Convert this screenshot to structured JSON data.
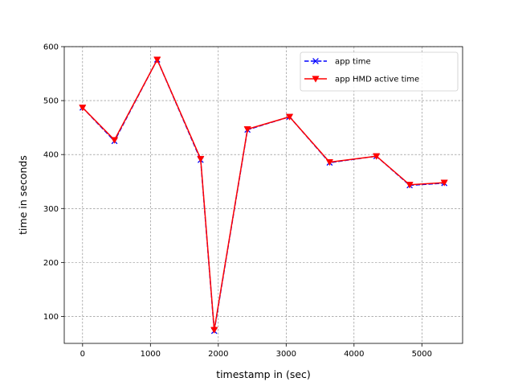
{
  "chart_data": {
    "type": "line",
    "title": "",
    "xlabel": "timestamp in (sec)",
    "ylabel": "time in seconds",
    "xlim": [
      -270,
      5600
    ],
    "ylim": [
      50,
      600
    ],
    "xticks": [
      0,
      1000,
      2000,
      3000,
      4000,
      5000
    ],
    "yticks": [
      100,
      200,
      300,
      400,
      500,
      600
    ],
    "grid": true,
    "legend_position": "top-right",
    "x": [
      0,
      470,
      1100,
      1740,
      1940,
      2430,
      3050,
      3640,
      4330,
      4820,
      5330
    ],
    "series": [
      {
        "name": "app time",
        "color": "#0000ff",
        "marker": "x",
        "linestyle": "dashed",
        "values": [
          487,
          425,
          576,
          390,
          73,
          446,
          470,
          385,
          397,
          343,
          347
        ]
      },
      {
        "name": "app HMD active time",
        "color": "#ff0000",
        "marker": "triangle-down",
        "linestyle": "solid",
        "values": [
          487,
          427,
          576,
          392,
          75,
          447,
          470,
          386,
          397,
          344,
          348
        ]
      }
    ]
  }
}
